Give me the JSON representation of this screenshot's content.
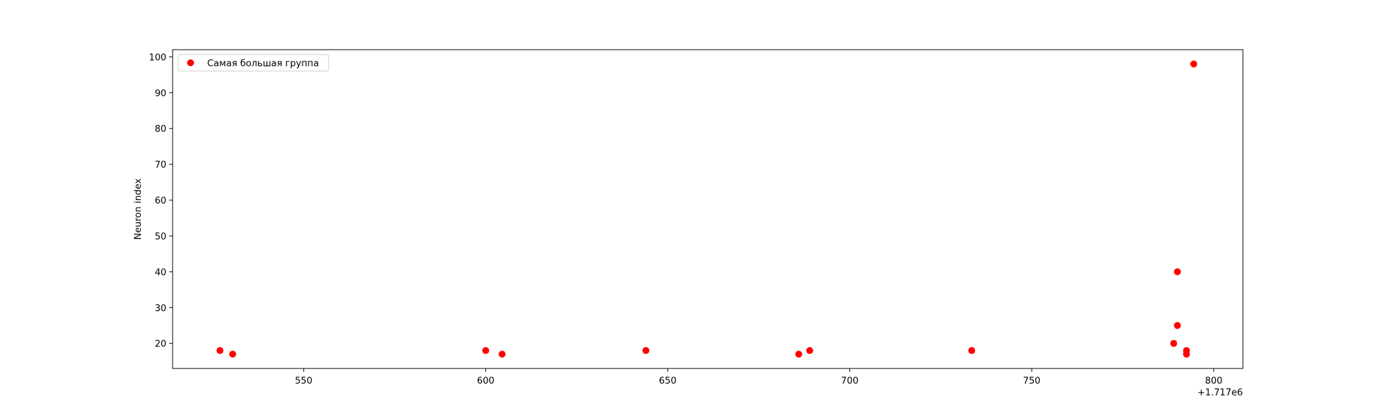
{
  "chart_data": {
    "type": "scatter",
    "title": "",
    "xlabel": "",
    "ylabel": "Neuron index",
    "x_offset_label": "+1.717e6",
    "xlim": [
      1717514,
      1717808
    ],
    "ylim": [
      13,
      102
    ],
    "xticks": [
      550,
      600,
      650,
      700,
      750,
      800
    ],
    "yticks": [
      20,
      30,
      40,
      50,
      60,
      70,
      80,
      90,
      100
    ],
    "grid": false,
    "legend_position": "top-left",
    "series": [
      {
        "name": "Самая большая группа",
        "color": "#ff0000",
        "points": [
          {
            "x": 1717527,
            "y": 18
          },
          {
            "x": 1717530.5,
            "y": 17
          },
          {
            "x": 1717600,
            "y": 18
          },
          {
            "x": 1717604.5,
            "y": 17
          },
          {
            "x": 1717644,
            "y": 18
          },
          {
            "x": 1717686,
            "y": 17
          },
          {
            "x": 1717689,
            "y": 18
          },
          {
            "x": 1717733.5,
            "y": 18
          },
          {
            "x": 1717789,
            "y": 20
          },
          {
            "x": 1717790,
            "y": 25
          },
          {
            "x": 1717790,
            "y": 40
          },
          {
            "x": 1717792.5,
            "y": 18
          },
          {
            "x": 1717792.5,
            "y": 17
          },
          {
            "x": 1717794.5,
            "y": 98
          }
        ]
      }
    ]
  }
}
